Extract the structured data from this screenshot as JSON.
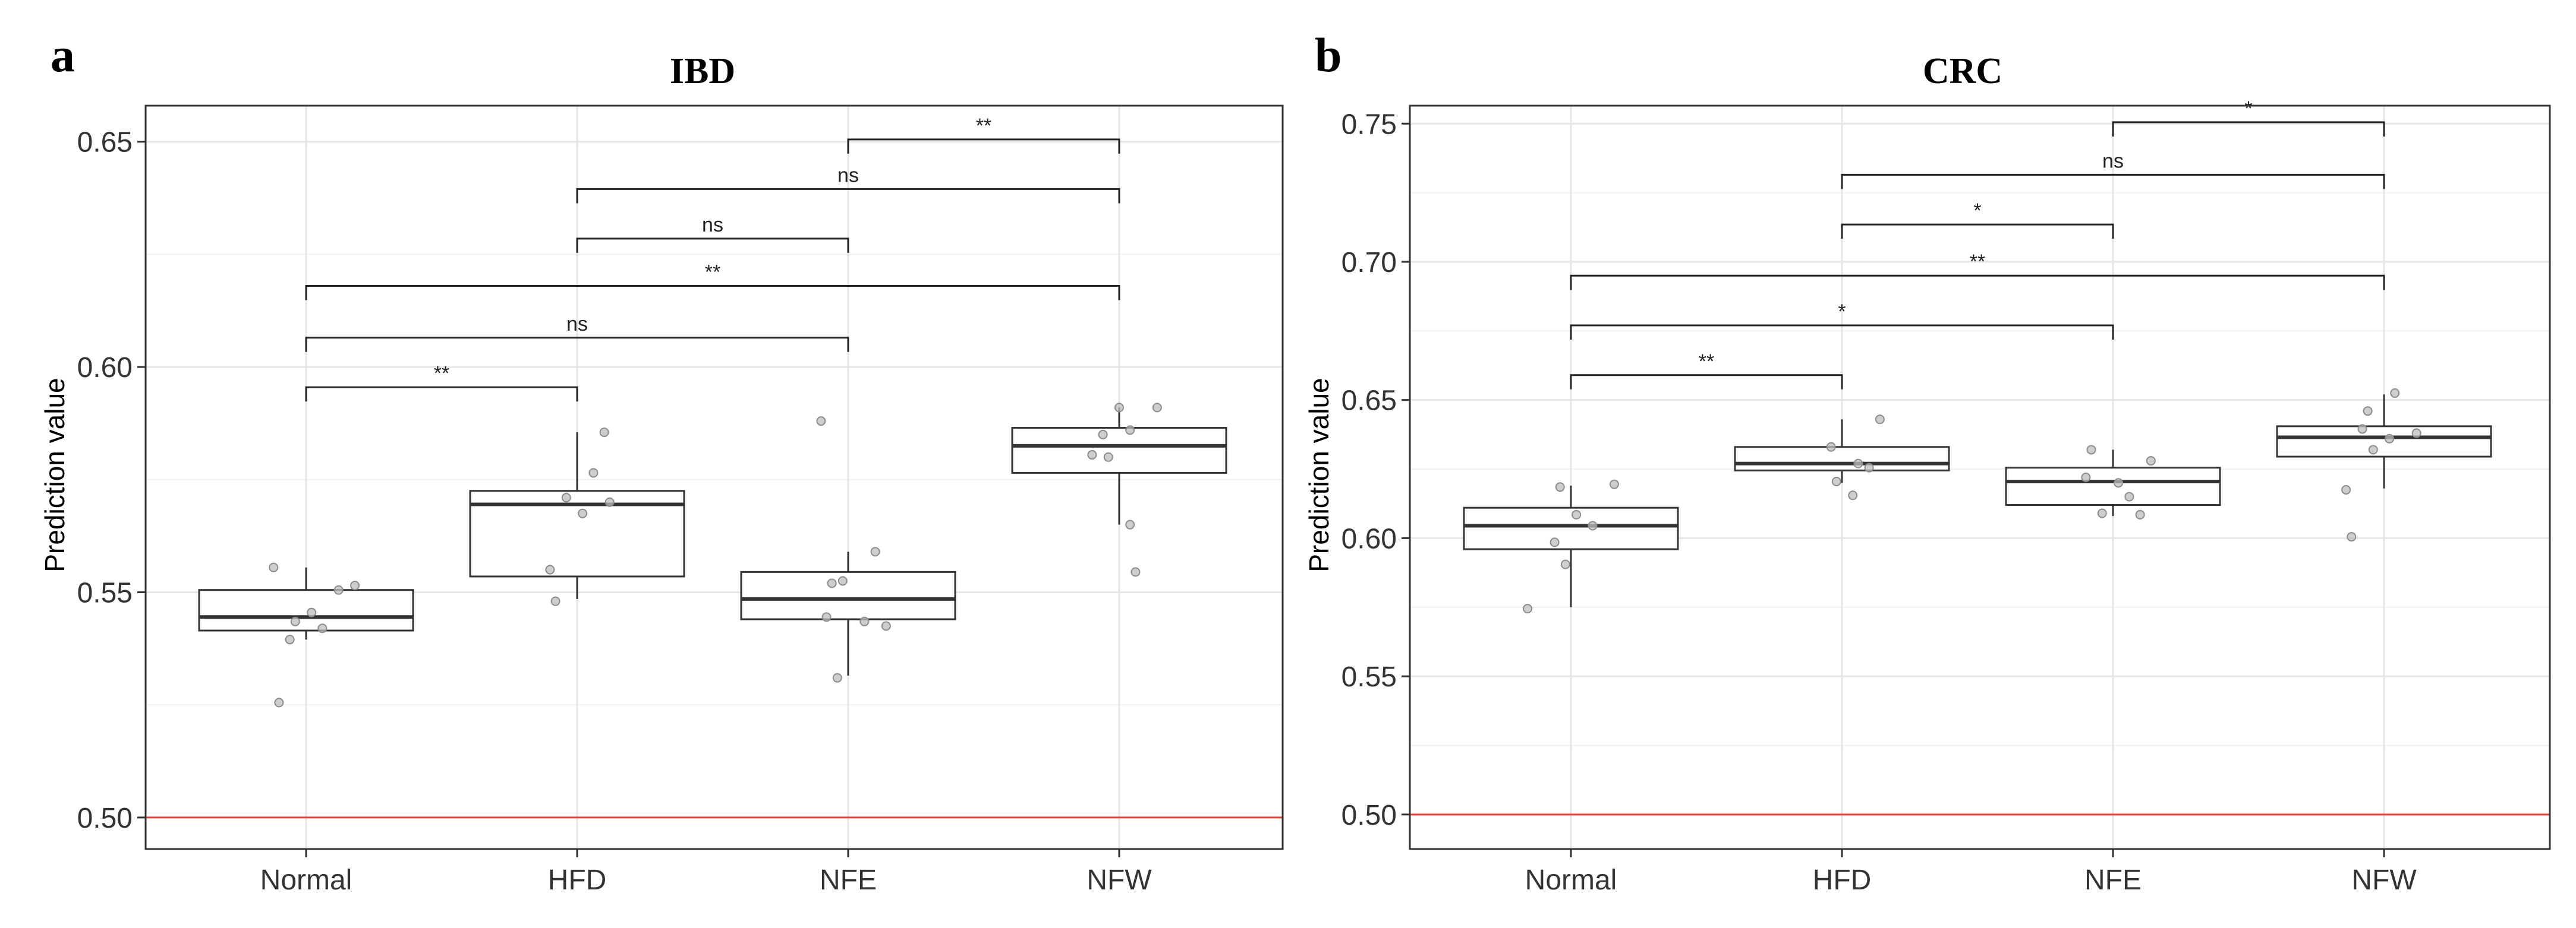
{
  "colors": {
    "reference_line": "#e8413b",
    "points": "#bdbdbd",
    "box": "#333333"
  },
  "chart_data": [
    {
      "type": "box",
      "panel": "a",
      "title": "IBD",
      "xlabel": "",
      "ylabel": "Prediction value",
      "categories": [
        "Normal",
        "HFD",
        "NFE",
        "NFW"
      ],
      "ylim": [
        0.493,
        0.658
      ],
      "yticks": [
        0.5,
        0.55,
        0.6,
        0.65
      ],
      "ytick_labels": [
        "0.50",
        "0.55",
        "0.60",
        "0.65"
      ],
      "reference_line": 0.5,
      "grid": true,
      "boxes": [
        {
          "name": "Normal",
          "q1": 0.5415,
          "median": 0.5445,
          "q3": 0.5505,
          "whisker_low": 0.5395,
          "whisker_high": 0.5555
        },
        {
          "name": "HFD",
          "q1": 0.5535,
          "median": 0.5695,
          "q3": 0.5725,
          "whisker_low": 0.5485,
          "whisker_high": 0.5855
        },
        {
          "name": "NFE",
          "q1": 0.544,
          "median": 0.5485,
          "q3": 0.5545,
          "whisker_low": 0.5315,
          "whisker_high": 0.559
        },
        {
          "name": "NFW",
          "q1": 0.5765,
          "median": 0.5825,
          "q3": 0.5865,
          "whisker_low": 0.565,
          "whisker_high": 0.591
        }
      ],
      "points": [
        {
          "group": "Normal",
          "values": [
            0.5555,
            0.5515,
            0.5505,
            0.5455,
            0.5435,
            0.542,
            0.5395,
            0.5255
          ],
          "offsets": [
            -0.12,
            0.18,
            0.12,
            0.02,
            -0.04,
            0.06,
            -0.06,
            -0.1
          ]
        },
        {
          "group": "HFD",
          "values": [
            0.5855,
            0.5765,
            0.571,
            0.57,
            0.5675,
            0.555,
            0.548
          ],
          "offsets": [
            0.1,
            0.06,
            -0.04,
            0.12,
            0.02,
            -0.1,
            -0.08
          ]
        },
        {
          "group": "NFE",
          "values": [
            0.588,
            0.559,
            0.5525,
            0.552,
            0.5445,
            0.5435,
            0.5425,
            0.531
          ],
          "offsets": [
            -0.1,
            0.1,
            -0.02,
            -0.06,
            -0.08,
            0.06,
            0.14,
            -0.04
          ]
        },
        {
          "group": "NFW",
          "values": [
            0.591,
            0.591,
            0.586,
            0.585,
            0.5805,
            0.58,
            0.565,
            0.5545
          ],
          "offsets": [
            0.0,
            0.14,
            0.04,
            -0.06,
            -0.1,
            -0.04,
            0.04,
            0.06
          ]
        }
      ],
      "comparisons": [
        {
          "from": "NFE",
          "to": "NFW",
          "y": 0.6505,
          "label": "**"
        },
        {
          "from": "HFD",
          "to": "NFW",
          "y": 0.6395,
          "label": "ns"
        },
        {
          "from": "HFD",
          "to": "NFE",
          "y": 0.6285,
          "label": "ns"
        },
        {
          "from": "Normal",
          "to": "NFW",
          "y": 0.618,
          "label": "**"
        },
        {
          "from": "Normal",
          "to": "NFE",
          "y": 0.6065,
          "label": "ns"
        },
        {
          "from": "Normal",
          "to": "HFD",
          "y": 0.5955,
          "label": "**"
        }
      ]
    },
    {
      "type": "box",
      "panel": "b",
      "title": "CRC",
      "xlabel": "",
      "ylabel": "Prediction value",
      "categories": [
        "Normal",
        "HFD",
        "NFE",
        "NFW"
      ],
      "ylim": [
        0.4875,
        0.7565
      ],
      "yticks": [
        0.5,
        0.55,
        0.6,
        0.65,
        0.7,
        0.75
      ],
      "ytick_labels": [
        "0.50",
        "0.55",
        "0.60",
        "0.65",
        "0.70",
        "0.75"
      ],
      "reference_line": 0.5,
      "grid": true,
      "boxes": [
        {
          "name": "Normal",
          "q1": 0.596,
          "median": 0.6045,
          "q3": 0.611,
          "whisker_low": 0.575,
          "whisker_high": 0.619
        },
        {
          "name": "HFD",
          "q1": 0.6245,
          "median": 0.627,
          "q3": 0.633,
          "whisker_low": 0.62,
          "whisker_high": 0.643
        },
        {
          "name": "NFE",
          "q1": 0.612,
          "median": 0.6205,
          "q3": 0.6255,
          "whisker_low": 0.608,
          "whisker_high": 0.632
        },
        {
          "name": "NFW",
          "q1": 0.6295,
          "median": 0.6365,
          "q3": 0.6405,
          "whisker_low": 0.618,
          "whisker_high": 0.652
        }
      ],
      "points": [
        {
          "group": "Normal",
          "values": [
            0.6195,
            0.6185,
            0.6085,
            0.6045,
            0.5985,
            0.5905,
            0.5745
          ],
          "offsets": [
            0.16,
            -0.04,
            0.02,
            0.08,
            -0.06,
            -0.02,
            -0.16
          ]
        },
        {
          "group": "HFD",
          "values": [
            0.643,
            0.633,
            0.627,
            0.6255,
            0.6205,
            0.6155
          ],
          "offsets": [
            0.14,
            -0.04,
            0.06,
            0.1,
            -0.02,
            0.04
          ]
        },
        {
          "group": "NFE",
          "values": [
            0.632,
            0.628,
            0.622,
            0.62,
            0.615,
            0.609,
            0.6085
          ],
          "offsets": [
            -0.08,
            0.14,
            -0.1,
            0.02,
            0.06,
            -0.04,
            0.1
          ]
        },
        {
          "group": "NFW",
          "values": [
            0.6525,
            0.646,
            0.6395,
            0.638,
            0.636,
            0.632,
            0.6175,
            0.6005
          ],
          "offsets": [
            0.04,
            -0.06,
            -0.08,
            0.12,
            0.02,
            -0.04,
            -0.14,
            -0.12
          ]
        }
      ],
      "comparisons": [
        {
          "from": "NFE",
          "to": "NFW",
          "y": 0.7505,
          "label": "*"
        },
        {
          "from": "HFD",
          "to": "NFW",
          "y": 0.7315,
          "label": "ns"
        },
        {
          "from": "HFD",
          "to": "NFE",
          "y": 0.7135,
          "label": "*"
        },
        {
          "from": "Normal",
          "to": "NFW",
          "y": 0.695,
          "label": "**"
        },
        {
          "from": "Normal",
          "to": "NFE",
          "y": 0.677,
          "label": "*"
        },
        {
          "from": "Normal",
          "to": "HFD",
          "y": 0.659,
          "label": "**"
        }
      ]
    }
  ]
}
